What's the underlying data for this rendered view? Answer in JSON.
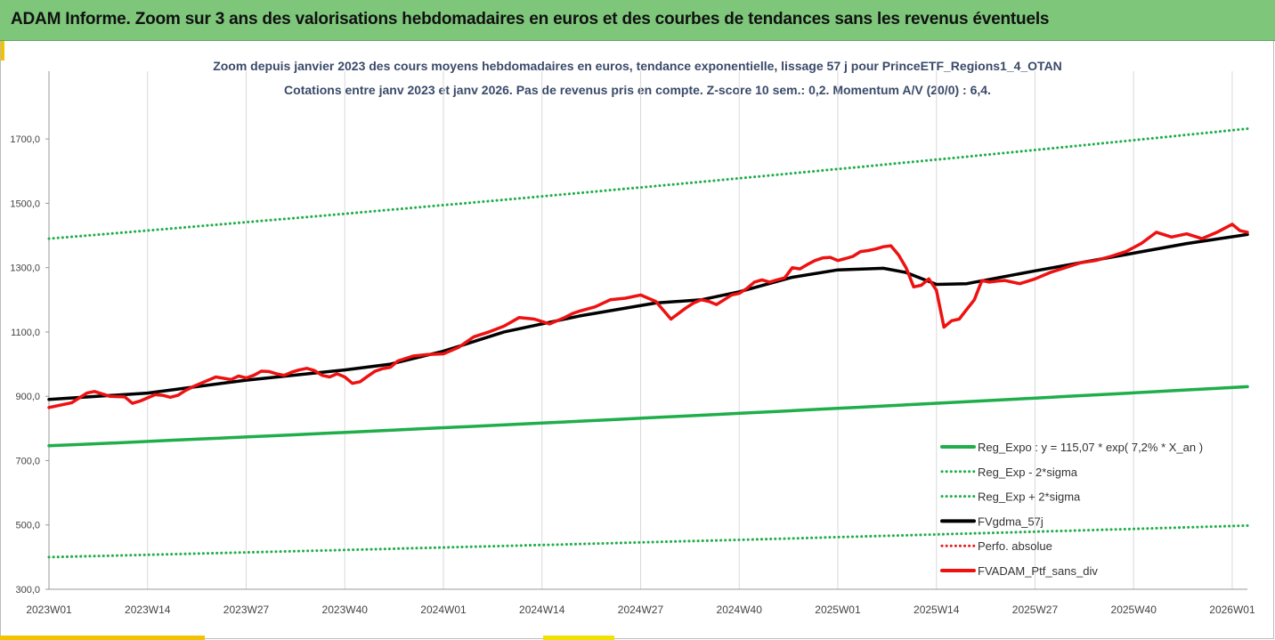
{
  "banner": {
    "title": "ADAM Informe. Zoom sur 3 ans des valorisations hebdomadaires en euros et des courbes de tendances sans les revenus éventuels"
  },
  "chart_data": {
    "type": "line",
    "title": "Zoom depuis janvier 2023 des cours moyens hebdomadaires  en euros,  tendance exponentielle, lissage 57 j pour PrinceETF_Regions1_4_OTAN",
    "subtitle": "Cotations entre janv 2023 et janv 2026. Pas de revenus pris en compte. Z-score 10 sem.: 0,2. Momentum  A/V (20/0) : 6,4.",
    "ylim": [
      300,
      1800
    ],
    "yticks": [
      300,
      500,
      700,
      900,
      1100,
      1300,
      1500,
      1700
    ],
    "ytick_labels": [
      "300,0",
      "500,0",
      "700,0",
      "900,0",
      "1100,0",
      "1300,0",
      "1500,0",
      "1700,0"
    ],
    "x_count": 159,
    "xtick_index": [
      0,
      13,
      26,
      39,
      52,
      65,
      78,
      91,
      104,
      117,
      130,
      143,
      156
    ],
    "xtick_labels": [
      "2023W01",
      "2023W14",
      "2023W27",
      "2023W40",
      "2024W01",
      "2024W14",
      "2024W27",
      "2024W40",
      "2025W01",
      "2025W14",
      "2025W27",
      "2025W40",
      "2026W01"
    ],
    "grid": "vertical",
    "legend_position": "bottom-right",
    "series": [
      {
        "name": "Reg_Expo : y = 115,07 * exp( 7,2% *  X_an )",
        "color": "#1fae4a",
        "style": "solid",
        "x": [
          0,
          158
        ],
        "y": [
          746,
          930
        ]
      },
      {
        "name": "Reg_Exp - 2*sigma",
        "color": "#1fae4a",
        "style": "dotted",
        "x": [
          0,
          158
        ],
        "y": [
          400,
          498
        ]
      },
      {
        "name": "Reg_Exp + 2*sigma",
        "color": "#1fae4a",
        "style": "dotted",
        "x": [
          0,
          158
        ],
        "y": [
          1390,
          1732
        ]
      },
      {
        "name": "FVgdma_57j",
        "color": "#000000",
        "style": "solid",
        "x": [
          0,
          13,
          26,
          39,
          45,
          52,
          60,
          70,
          80,
          86,
          91,
          98,
          104,
          110,
          113,
          117,
          121,
          130,
          143,
          150,
          158
        ],
        "y": [
          890,
          910,
          950,
          982,
          1000,
          1040,
          1100,
          1150,
          1190,
          1200,
          1225,
          1270,
          1293,
          1298,
          1285,
          1248,
          1250,
          1290,
          1345,
          1375,
          1403
        ]
      },
      {
        "name": "Perfo. absolue",
        "color": "#e02020",
        "style": "dotted",
        "x": [],
        "y": []
      },
      {
        "name": "FVADAM_Ptf_sans_div",
        "color": "#ee1111",
        "style": "solid",
        "x": [
          0,
          3,
          5,
          6,
          8,
          10,
          11,
          12,
          13,
          14,
          15,
          16,
          17,
          18,
          19,
          20,
          22,
          24,
          25,
          26,
          27,
          28,
          29,
          30,
          31,
          32,
          33,
          34,
          35,
          36,
          37,
          38,
          39,
          40,
          41,
          42,
          43,
          44,
          45,
          46,
          48,
          50,
          52,
          54,
          56,
          58,
          60,
          62,
          64,
          66,
          68,
          69,
          70,
          72,
          74,
          76,
          78,
          80,
          82,
          84,
          85,
          86,
          87,
          88,
          89,
          90,
          91,
          92,
          93,
          94,
          95,
          96,
          97,
          98,
          99,
          100,
          101,
          102,
          103,
          104,
          105,
          106,
          107,
          108,
          109,
          110,
          111,
          112,
          113,
          114,
          115,
          116,
          117,
          118,
          119,
          120,
          121,
          122,
          123,
          124,
          125,
          126,
          128,
          130,
          132,
          134,
          136,
          138,
          140,
          142,
          144,
          146,
          148,
          150,
          152,
          154,
          156,
          157,
          158
        ],
        "y": [
          865,
          880,
          910,
          915,
          900,
          898,
          878,
          885,
          895,
          905,
          903,
          897,
          903,
          918,
          930,
          940,
          960,
          952,
          963,
          957,
          965,
          978,
          977,
          970,
          965,
          975,
          982,
          987,
          980,
          965,
          960,
          970,
          960,
          940,
          945,
          962,
          978,
          986,
          990,
          1010,
          1025,
          1030,
          1032,
          1052,
          1085,
          1100,
          1118,
          1145,
          1140,
          1125,
          1145,
          1157,
          1165,
          1178,
          1200,
          1205,
          1215,
          1195,
          1140,
          1175,
          1190,
          1200,
          1195,
          1185,
          1200,
          1215,
          1220,
          1235,
          1255,
          1262,
          1255,
          1262,
          1268,
          1300,
          1296,
          1310,
          1322,
          1330,
          1332,
          1322,
          1328,
          1335,
          1350,
          1353,
          1358,
          1365,
          1368,
          1340,
          1300,
          1240,
          1245,
          1265,
          1230,
          1115,
          1135,
          1140,
          1170,
          1200,
          1260,
          1255,
          1258,
          1260,
          1250,
          1265,
          1285,
          1300,
          1315,
          1322,
          1335,
          1350,
          1375,
          1410,
          1395,
          1405,
          1390,
          1410,
          1435,
          1415,
          1410
        ]
      }
    ]
  }
}
